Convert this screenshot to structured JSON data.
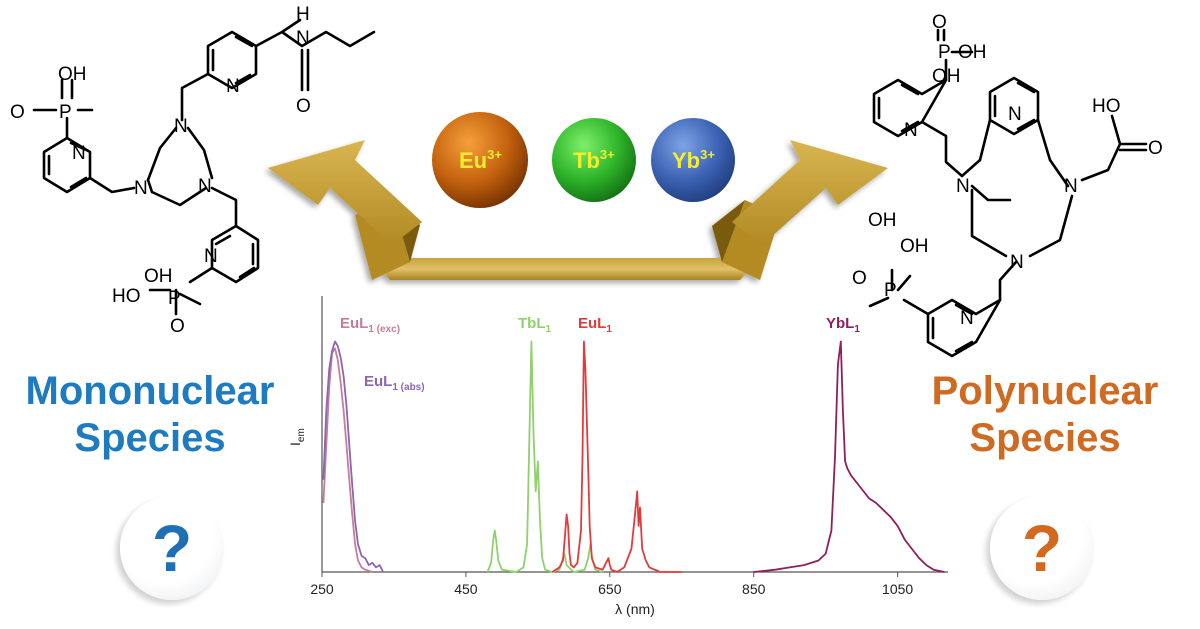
{
  "left_panel": {
    "title_line1": "Mononuclear",
    "title_line2": "Species",
    "question": "?"
  },
  "right_panel": {
    "title_line1": "Polynuclear",
    "title_line2": "Species",
    "question": "?"
  },
  "ions": [
    {
      "symbol": "Eu",
      "charge": "3+",
      "color": "#c4620e"
    },
    {
      "symbol": "Tb",
      "charge": "3+",
      "color": "#2fb52a"
    },
    {
      "symbol": "Yb",
      "charge": "3+",
      "color": "#3d64b5"
    }
  ],
  "colors": {
    "mono": "#1f7bc0",
    "poly": "#cf6a22",
    "arrow": "#c9a53a",
    "ion_label": "#f4ee2c"
  },
  "molecule_atoms": {
    "phosphorus": "P",
    "oxygen": "O",
    "hydroxyl": "OH",
    "hydroxyl_left": "HO",
    "nitrogen": "N",
    "hydrogen": "H",
    "carboxyl_ho": "HO"
  },
  "chart_data": {
    "type": "line",
    "xlabel": "λ (nm)",
    "ylabel_main": "I",
    "ylabel_sub": "em",
    "xlim": [
      250,
      1120
    ],
    "ylim": [
      0,
      1.05
    ],
    "x_ticks": [
      250,
      450,
      650,
      850,
      1050
    ],
    "series": [
      {
        "name": "EuL",
        "sub": "1 (exc)",
        "color": "#c97b98",
        "x": [
          252,
          256,
          260,
          264,
          268,
          272,
          276,
          280,
          284,
          288,
          292,
          296,
          300,
          305,
          310,
          320
        ],
        "y": [
          0.3,
          0.55,
          0.8,
          0.95,
          0.97,
          0.92,
          0.82,
          0.7,
          0.55,
          0.4,
          0.25,
          0.12,
          0.05,
          0.02,
          0.01,
          0.0
        ]
      },
      {
        "name": "EuL",
        "sub": "1 (abs)",
        "color": "#8a66b3",
        "x": [
          252,
          256,
          260,
          264,
          268,
          272,
          276,
          280,
          284,
          288,
          292,
          296,
          300,
          305,
          310,
          315,
          320,
          325,
          330,
          335
        ],
        "y": [
          0.4,
          0.7,
          0.88,
          0.96,
          1.0,
          0.98,
          0.93,
          0.85,
          0.72,
          0.55,
          0.38,
          0.22,
          0.12,
          0.07,
          0.06,
          0.03,
          0.04,
          0.02,
          0.03,
          0.0
        ]
      },
      {
        "name": "TbL",
        "sub": "1",
        "color": "#8fd16a",
        "x": [
          480,
          485,
          488,
          490,
          492,
          495,
          500,
          520,
          530,
          535,
          538,
          541,
          544,
          547,
          550,
          553,
          556,
          560,
          570,
          580,
          584,
          587,
          590,
          600,
          615,
          620,
          623,
          626,
          630,
          640
        ],
        "y": [
          0.0,
          0.04,
          0.14,
          0.18,
          0.14,
          0.05,
          0.01,
          0.0,
          0.02,
          0.12,
          0.55,
          1.0,
          0.6,
          0.35,
          0.48,
          0.22,
          0.06,
          0.01,
          0.0,
          0.01,
          0.05,
          0.08,
          0.03,
          0.0,
          0.01,
          0.06,
          0.12,
          0.05,
          0.01,
          0.0
        ]
      },
      {
        "name": "EuL",
        "sub": "1",
        "color": "#e33b3b",
        "x": [
          570,
          580,
          585,
          588,
          590,
          592,
          594,
          596,
          600,
          605,
          610,
          612,
          614,
          616,
          618,
          620,
          622,
          625,
          630,
          640,
          648,
          650,
          652,
          660,
          670,
          680,
          685,
          688,
          690,
          692,
          695,
          700,
          705,
          720,
          750
        ],
        "y": [
          0.0,
          0.02,
          0.05,
          0.17,
          0.25,
          0.2,
          0.08,
          0.03,
          0.02,
          0.04,
          0.18,
          0.5,
          1.0,
          0.88,
          0.66,
          0.45,
          0.2,
          0.06,
          0.02,
          0.01,
          0.06,
          0.03,
          0.01,
          0.0,
          0.02,
          0.1,
          0.25,
          0.35,
          0.2,
          0.28,
          0.1,
          0.05,
          0.02,
          0.0,
          0.0
        ]
      },
      {
        "name": "YbL",
        "sub": "1",
        "color": "#8e1f5e",
        "x": [
          850,
          880,
          900,
          920,
          940,
          950,
          958,
          963,
          967,
          971,
          974,
          977,
          980,
          985,
          990,
          1000,
          1010,
          1020,
          1030,
          1040,
          1050,
          1060,
          1070,
          1080,
          1090,
          1100,
          1115
        ],
        "y": [
          0.0,
          0.01,
          0.02,
          0.03,
          0.05,
          0.08,
          0.18,
          0.5,
          0.9,
          1.0,
          0.7,
          0.48,
          0.45,
          0.42,
          0.4,
          0.36,
          0.32,
          0.3,
          0.27,
          0.24,
          0.2,
          0.14,
          0.1,
          0.06,
          0.03,
          0.01,
          0.0
        ]
      }
    ]
  }
}
